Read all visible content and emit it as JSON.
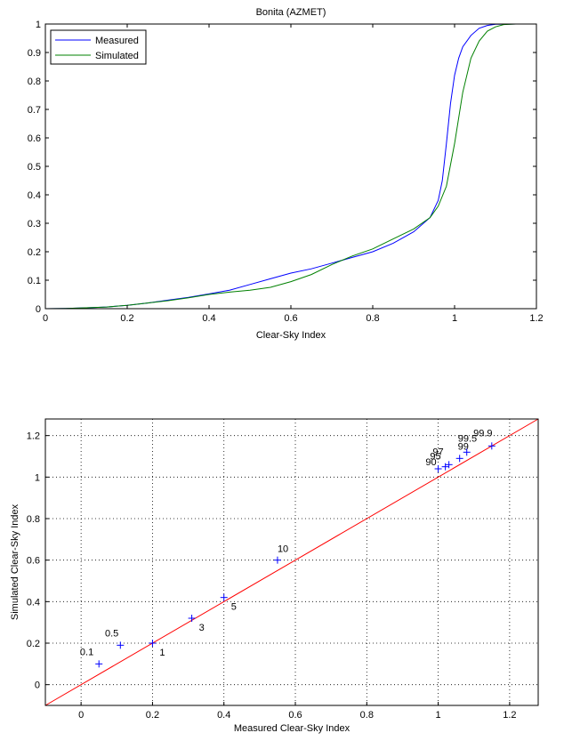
{
  "chart_data": [
    {
      "type": "line",
      "title": "Bonita (AZMET)",
      "xlabel": "Clear-Sky Index",
      "ylabel": "",
      "xlim": [
        0,
        1.2
      ],
      "ylim": [
        0,
        1
      ],
      "xticks": [
        "0",
        "0.2",
        "0.4",
        "0.6",
        "0.8",
        "1",
        "1.2"
      ],
      "yticks": [
        "0",
        "0.1",
        "0.2",
        "0.3",
        "0.4",
        "0.5",
        "0.6",
        "0.7",
        "0.8",
        "0.9",
        "1"
      ],
      "grid": false,
      "legend_position": "top-left",
      "series": [
        {
          "name": "Measured",
          "color": "#0000ff",
          "x": [
            0,
            0.05,
            0.1,
            0.15,
            0.2,
            0.25,
            0.3,
            0.35,
            0.4,
            0.45,
            0.5,
            0.55,
            0.6,
            0.65,
            0.7,
            0.75,
            0.8,
            0.85,
            0.9,
            0.94,
            0.96,
            0.97,
            0.98,
            0.99,
            1.0,
            1.01,
            1.02,
            1.04,
            1.06,
            1.08,
            1.1,
            1.15
          ],
          "y": [
            0,
            0.001,
            0.003,
            0.006,
            0.012,
            0.02,
            0.03,
            0.04,
            0.052,
            0.065,
            0.085,
            0.105,
            0.125,
            0.14,
            0.16,
            0.18,
            0.2,
            0.23,
            0.27,
            0.32,
            0.38,
            0.45,
            0.58,
            0.72,
            0.82,
            0.88,
            0.92,
            0.96,
            0.985,
            0.995,
            0.999,
            1.0
          ]
        },
        {
          "name": "Simulated",
          "color": "#008000",
          "x": [
            0,
            0.05,
            0.1,
            0.15,
            0.2,
            0.25,
            0.3,
            0.35,
            0.4,
            0.45,
            0.5,
            0.55,
            0.6,
            0.65,
            0.7,
            0.75,
            0.8,
            0.85,
            0.9,
            0.94,
            0.96,
            0.98,
            1.0,
            1.02,
            1.04,
            1.06,
            1.08,
            1.1,
            1.12,
            1.15
          ],
          "y": [
            0,
            0.001,
            0.003,
            0.006,
            0.012,
            0.02,
            0.028,
            0.038,
            0.05,
            0.058,
            0.065,
            0.075,
            0.095,
            0.12,
            0.155,
            0.185,
            0.21,
            0.245,
            0.28,
            0.32,
            0.36,
            0.43,
            0.58,
            0.76,
            0.88,
            0.94,
            0.975,
            0.99,
            0.998,
            1.0
          ]
        }
      ]
    },
    {
      "type": "scatter",
      "title": "",
      "xlabel": "Measured Clear-Sky Index",
      "ylabel": "Simulated Clear-Sky Index",
      "xlim": [
        -0.1,
        1.28
      ],
      "ylim": [
        -0.1,
        1.28
      ],
      "xticks": [
        "0",
        "0.2",
        "0.4",
        "0.6",
        "0.8",
        "1",
        "1.2"
      ],
      "yticks": [
        "0",
        "0.2",
        "0.4",
        "0.6",
        "0.8",
        "1",
        "1.2"
      ],
      "grid": true,
      "reference_line": {
        "color": "#ff0000",
        "from": [
          -0.1,
          -0.1
        ],
        "to": [
          1.28,
          1.28
        ]
      },
      "marker_color": "#0000ff",
      "points": [
        {
          "label": "0.1",
          "x": 0.05,
          "y": 0.1
        },
        {
          "label": "0.5",
          "x": 0.11,
          "y": 0.19
        },
        {
          "label": "1",
          "x": 0.2,
          "y": 0.2
        },
        {
          "label": "3",
          "x": 0.31,
          "y": 0.32
        },
        {
          "label": "5",
          "x": 0.4,
          "y": 0.42
        },
        {
          "label": "10",
          "x": 0.55,
          "y": 0.6
        },
        {
          "label": "90",
          "x": 1.0,
          "y": 1.04
        },
        {
          "label": "95",
          "x": 1.02,
          "y": 1.05
        },
        {
          "label": "97",
          "x": 1.03,
          "y": 1.06
        },
        {
          "label": "99",
          "x": 1.06,
          "y": 1.09
        },
        {
          "label": "99.5",
          "x": 1.08,
          "y": 1.12
        },
        {
          "label": "99.9",
          "x": 1.15,
          "y": 1.15
        }
      ]
    }
  ]
}
